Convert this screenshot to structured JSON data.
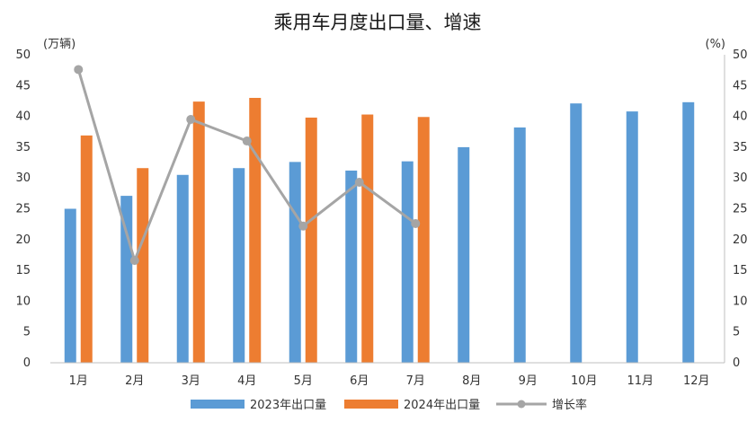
{
  "chart_data": {
    "type": "bar",
    "title": "乘用车月度出口量、增速",
    "y_unit_left": "(万辆)",
    "y_unit_right": "(%)",
    "categories": [
      "1月",
      "2月",
      "3月",
      "4月",
      "5月",
      "6月",
      "7月",
      "8月",
      "9月",
      "10月",
      "11月",
      "12月"
    ],
    "ylim": [
      0,
      50
    ],
    "y_ticks": [
      "0",
      "5",
      "10",
      "15",
      "20",
      "25",
      "30",
      "35",
      "40",
      "45",
      "50"
    ],
    "y2lim": [
      0,
      50
    ],
    "y2_ticks": [
      "0",
      "5",
      "10",
      "15",
      "20",
      "25",
      "30",
      "35",
      "40",
      "45",
      "50"
    ],
    "grid": false,
    "legend_position": "bottom",
    "series": [
      {
        "name": "2023年出口量",
        "type": "bar",
        "color": "#5b9bd5",
        "values": [
          25.0,
          27.1,
          30.5,
          31.6,
          32.6,
          31.2,
          32.7,
          35.0,
          38.2,
          42.1,
          40.8,
          42.3
        ]
      },
      {
        "name": "2024年出口量",
        "type": "bar",
        "color": "#ed7d31",
        "values": [
          36.9,
          31.6,
          42.4,
          43.0,
          39.8,
          40.3,
          39.9,
          null,
          null,
          null,
          null,
          null
        ]
      },
      {
        "name": "增长率",
        "type": "line",
        "axis": "right",
        "color": "#a5a5a5",
        "values": [
          47.6,
          16.6,
          39.5,
          36.0,
          22.2,
          29.3,
          22.6,
          null,
          null,
          null,
          null,
          null
        ]
      }
    ]
  }
}
